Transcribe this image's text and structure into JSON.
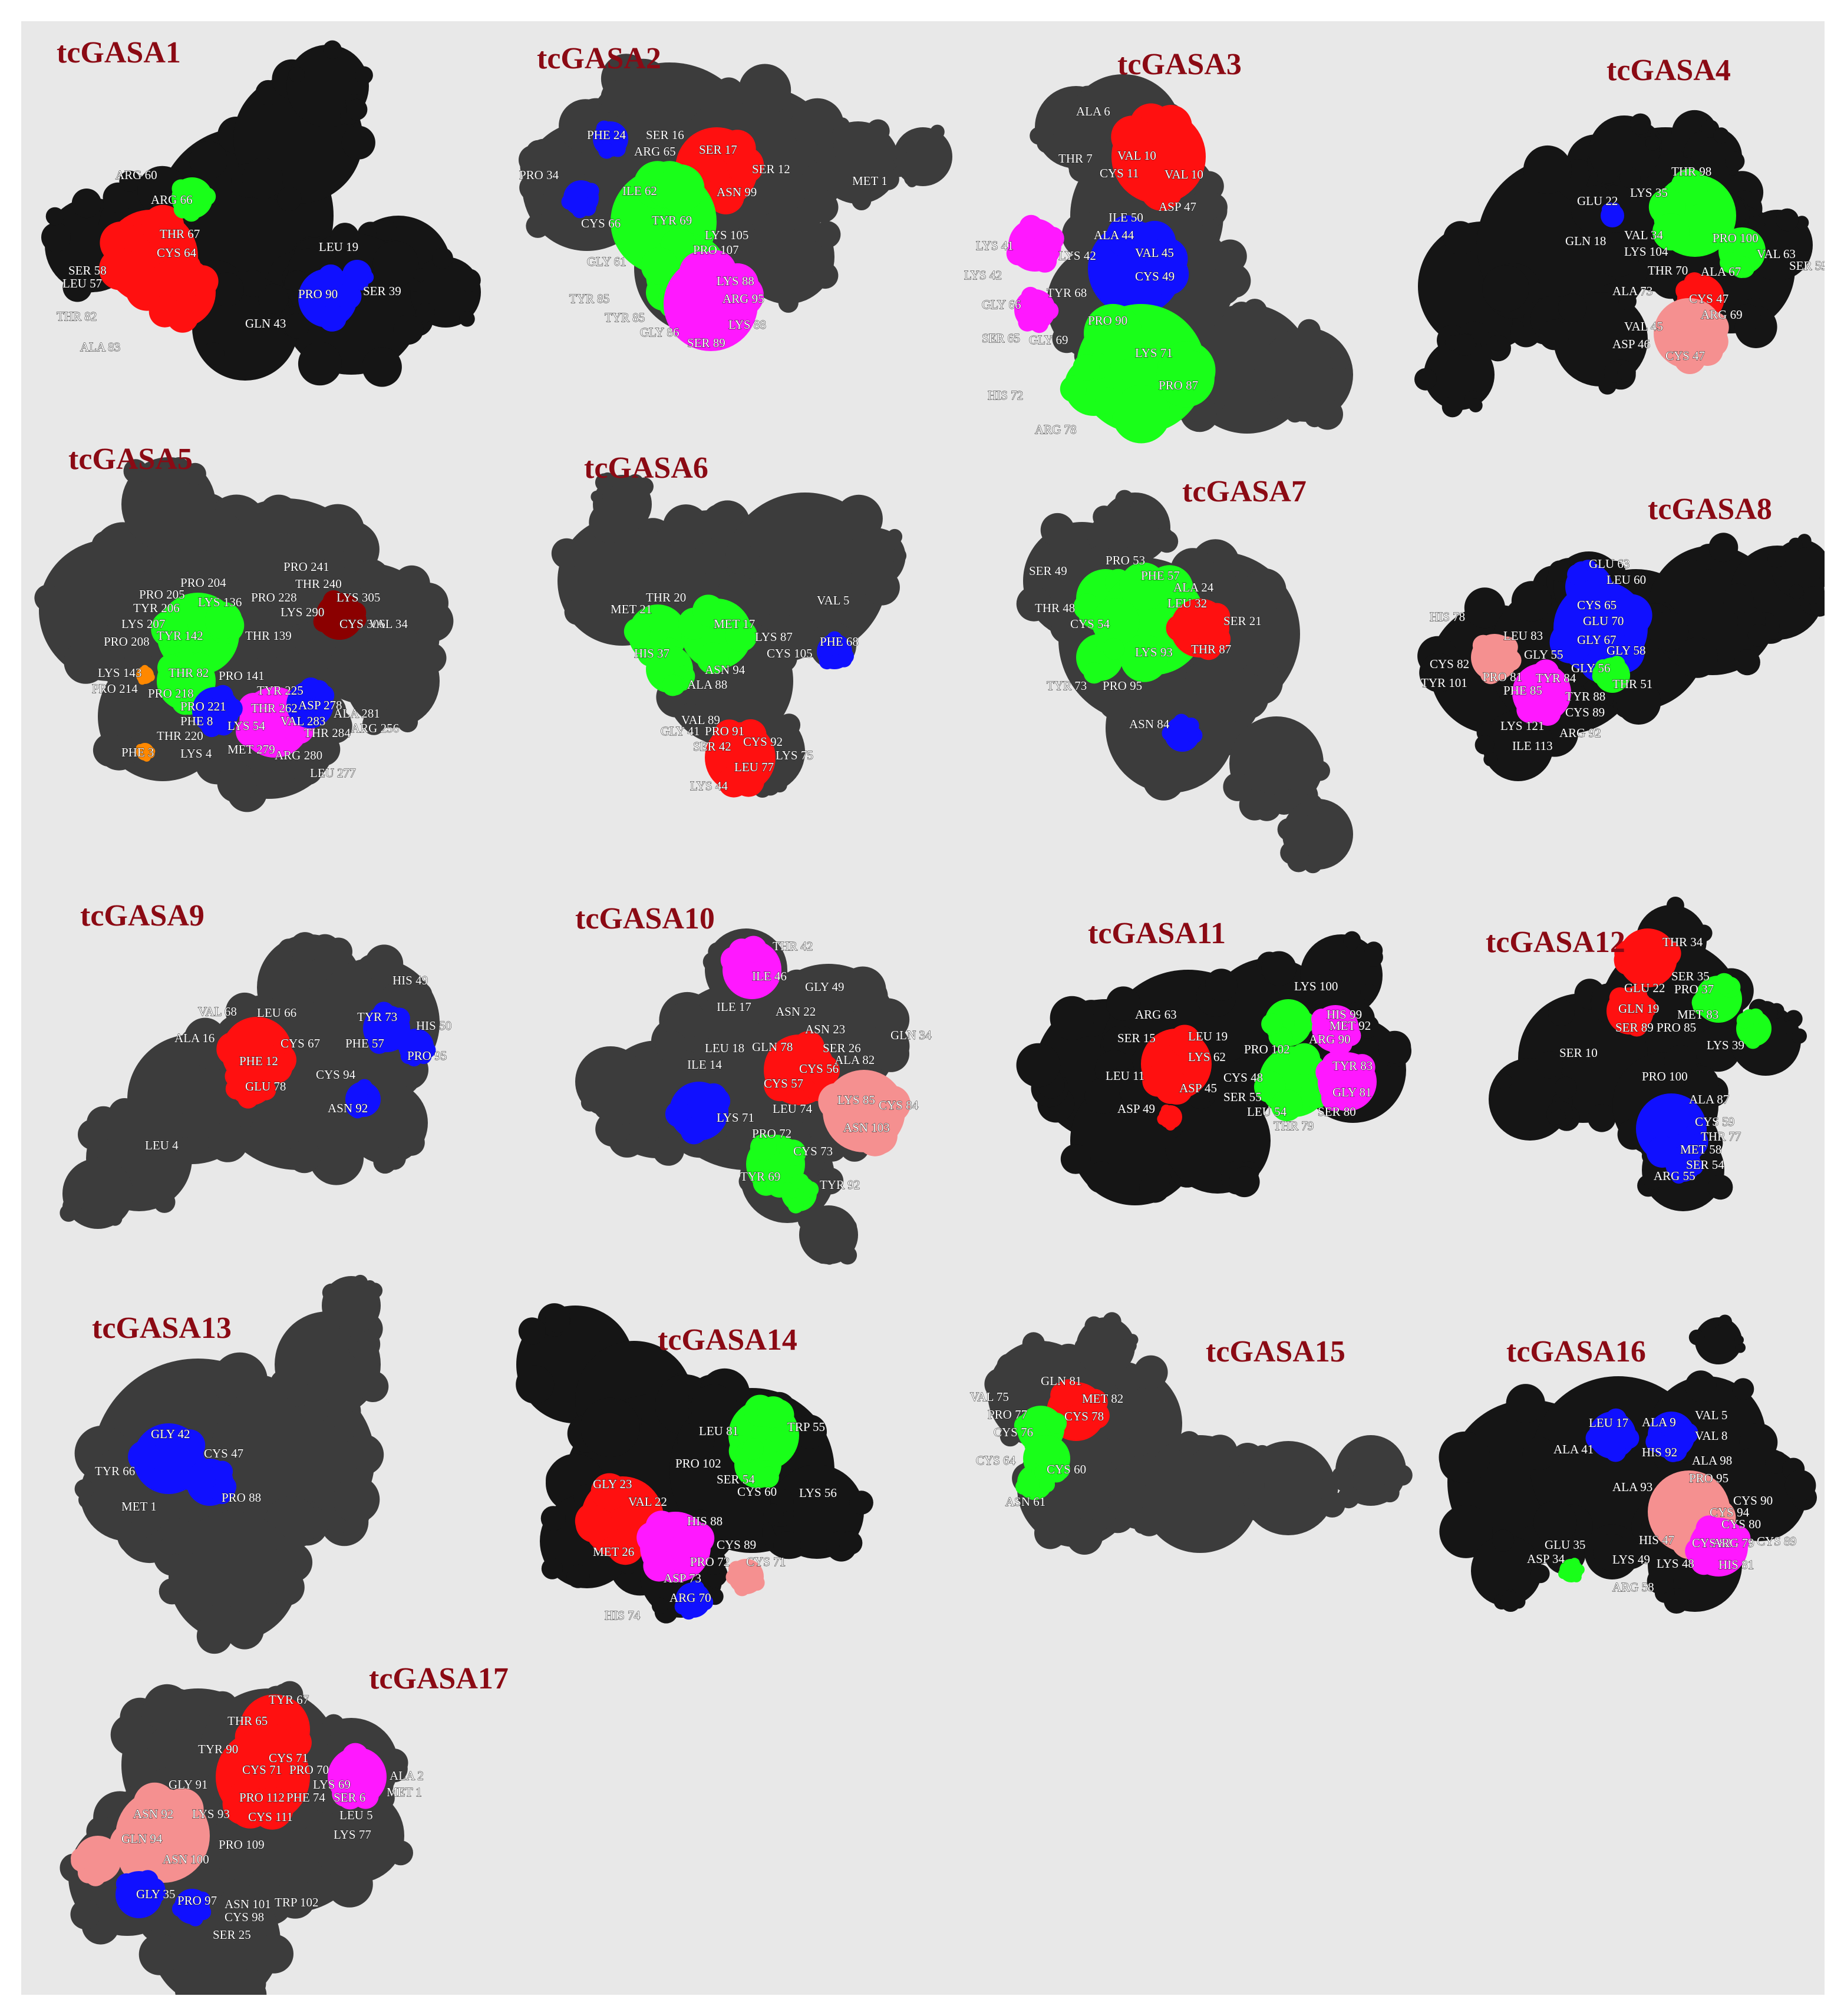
{
  "colors": {
    "background": "#e8e8e8",
    "title": "#8b0a14",
    "surface_black": "#151515",
    "surface_grey": "#3c3c3c",
    "red": "#ff1010",
    "green": "#19ff19",
    "blue": "#1010ff",
    "magenta": "#ff18ff",
    "salmon": "#f59090",
    "darkred": "#8b0000",
    "orange": "#ff8800",
    "label": "#ffffff"
  },
  "panels": [
    {
      "title": "tcGASA1",
      "base": "black",
      "labels": [
        "ARG 60",
        "ARG 66",
        "THR 67",
        "CYS 64",
        "SER 58",
        "LEU 57",
        "THR 82",
        "ALA 83",
        "LEU 19",
        "PRO 90",
        "SER 39",
        "GLN 43"
      ]
    },
    {
      "title": "tcGASA2",
      "base": "grey",
      "labels": [
        "PHE 24",
        "SER 16",
        "ARG 65",
        "SER 17",
        "SER 12",
        "PRO 34",
        "ILE 62",
        "ASN 99",
        "MET 1",
        "CYS 66",
        "TYR 69",
        "LYS 105",
        "PRO 107",
        "GLY 61",
        "LYS 88",
        "ARG 95",
        "TYR 85",
        "TYR 85",
        "LYS 88",
        "GLY 86",
        "SER 89"
      ]
    },
    {
      "title": "tcGASA3",
      "base": "grey",
      "labels": [
        "ALA 6",
        "THR 7",
        "VAL 10",
        "CYS 11",
        "VAL 10",
        "ASP 47",
        "ILE 50",
        "LYS 41",
        "ALA 44",
        "LYS 42",
        "VAL 45",
        "LYS 42",
        "TYR 68",
        "CYS 49",
        "GLY 66",
        "PRO 90",
        "SER 65",
        "GLY 69",
        "LYS 71",
        "PRO 87",
        "HIS 72",
        "ARG 78"
      ]
    },
    {
      "title": "tcGASA4",
      "base": "black",
      "labels": [
        "LYS 35",
        "THR 98",
        "GLU 22",
        "VAL 34",
        "GLN 18",
        "LYS 104",
        "PRO 100",
        "VAL 63",
        "THR 70",
        "ALA 67",
        "SER 59",
        "ALA 73",
        "CYS 47",
        "ARG 69",
        "VAL 45",
        "ASP 46",
        "CYS 47"
      ]
    },
    {
      "title": "tcGASA5",
      "base": "grey",
      "labels": [
        "PRO 241",
        "PRO 204",
        "THR 240",
        "PRO 205",
        "PRO 228",
        "LYS 305",
        "TYR 206",
        "LYS 136",
        "LYS 290",
        "LYS 207",
        "CYS 306",
        "VAL 34",
        "TYR 142",
        "THR 139",
        "PRO 208",
        "THR 82",
        "LYS 143",
        "PRO 141",
        "PRO 214",
        "TYR 225",
        "PRO 218",
        "PRO 221",
        "THR 262",
        "ASP 278",
        "PHE 8",
        "VAL 283",
        "ALA 281",
        "LYS 54",
        "THR 284",
        "ARG 256",
        "THR 220",
        "MET 279",
        "PHE 3",
        "LYS 4",
        "ARG 280",
        "LEU 277"
      ]
    },
    {
      "title": "tcGASA6",
      "base": "grey",
      "labels": [
        "THR 20",
        "MET 21",
        "MET 17",
        "VAL 5",
        "LYS 87",
        "HIS 37",
        "CYS 105",
        "PHE 68",
        "ASN 94",
        "ALA 88",
        "VAL 89",
        "GLY 41",
        "PRO 91",
        "CYS 92",
        "SER 42",
        "LYS 75",
        "LEU 77",
        "LYS 44"
      ]
    },
    {
      "title": "tcGASA7",
      "base": "grey",
      "labels": [
        "PRO 53",
        "SER 49",
        "PHE 57",
        "ALA 24",
        "LEU 32",
        "THR 48",
        "SER 21",
        "CYS 54",
        "THR 87",
        "LYS 93",
        "TYR 73",
        "PRO 95",
        "ASN 84"
      ]
    },
    {
      "title": "tcGASA8",
      "base": "black",
      "labels": [
        "GLU 63",
        "LEU 60",
        "CYS 65",
        "HIS 78",
        "GLU 70",
        "LEU 83",
        "GLY 67",
        "GLY 55",
        "GLY 58",
        "CYS 82",
        "GLY 56",
        "TYR 101",
        "PRO 81",
        "TYR 84",
        "THR 51",
        "PHE 85",
        "TYR 88",
        "CYS 89",
        "LYS 121",
        "ARG 92",
        "ILE 113"
      ]
    },
    {
      "title": "tcGASA9",
      "base": "grey",
      "labels": [
        "HIS 49",
        "VAL 68",
        "LEU 66",
        "TYR 73",
        "HIS 50",
        "ALA 16",
        "CYS 67",
        "PHE 57",
        "PHE 12",
        "PRO 95",
        "CYS 94",
        "GLU 78",
        "ASN 92",
        "LEU 4"
      ]
    },
    {
      "title": "tcGASA10",
      "base": "grey",
      "labels": [
        "THR 42",
        "ILE 46",
        "GLY 49",
        "ILE 17",
        "ASN 22",
        "ASN 23",
        "GLN 34",
        "LEU 18",
        "GLN 78",
        "SER 26",
        "ILE 14",
        "ALA 82",
        "CYS 56",
        "CYS 57",
        "LYS 85",
        "CYS 84",
        "LEU 74",
        "LYS 71",
        "ASN 103",
        "PRO 72",
        "CYS 73",
        "TYR 69",
        "TYR 92"
      ]
    },
    {
      "title": "tcGASA11",
      "base": "black",
      "labels": [
        "LYS 100",
        "HIS 99",
        "ARG 63",
        "MET 92",
        "LEU 19",
        "SER 15",
        "PRO 102",
        "ARG 90",
        "LYS 62",
        "TYR 83",
        "LEU 11",
        "CYS 48",
        "ASP 45",
        "GLY 81",
        "SER 55",
        "ASP 49",
        "LEU 54",
        "SER 80",
        "THR 79"
      ]
    },
    {
      "title": "tcGASA12",
      "base": "black",
      "labels": [
        "THR 34",
        "SER 35",
        "GLU 22",
        "PRO 37",
        "GLN 19",
        "MET 83",
        "SER 89",
        "PRO 85",
        "LYS 39",
        "SER 10",
        "PRO 100",
        "ALA 87",
        "CYS 59",
        "THR 77",
        "MET 58",
        "SER 54",
        "ARG 55"
      ]
    },
    {
      "title": "tcGASA13",
      "base": "grey",
      "labels": [
        "GLY 42",
        "CYS 47",
        "TYR 66",
        "PRO 88",
        "MET 1"
      ]
    },
    {
      "title": "tcGASA14",
      "base": "black",
      "labels": [
        "LEU 81",
        "TRP 55",
        "PRO 102",
        "SER 54",
        "GLY 23",
        "CYS 60",
        "LYS 56",
        "VAL 22",
        "HIS 88",
        "MET 26",
        "CYS 89",
        "PRO 72",
        "CYS 71",
        "ASP 73",
        "ARG 70",
        "HIS 74"
      ]
    },
    {
      "title": "tcGASA15",
      "base": "grey",
      "labels": [
        "GLN 81",
        "VAL 75",
        "MET 82",
        "PRO 77",
        "CYS 78",
        "CYS 76",
        "CYS 64",
        "CYS 60",
        "ASN 61"
      ]
    },
    {
      "title": "tcGASA16",
      "base": "black",
      "labels": [
        "LEU 17",
        "ALA 9",
        "VAL 5",
        "VAL 8",
        "ALA 41",
        "HIS 92",
        "ALA 98",
        "PRO 95",
        "ALA 93",
        "CYS 90",
        "CYS 94",
        "HIS 47",
        "CYS 80",
        "CYS 82",
        "ARG 79",
        "CYS 89",
        "GLU 35",
        "ASP 34",
        "LYS 49",
        "LYS 48",
        "HIS 81",
        "ARG 58"
      ]
    },
    {
      "title": "tcGASA17",
      "base": "grey",
      "labels": [
        "TYR 67",
        "THR 65",
        "TYR 90",
        "CYS 71",
        "CYS 71",
        "PRO 70",
        "GLY 91",
        "LYS 69",
        "ALA 2",
        "PRO 112",
        "PHE 74",
        "SER 6",
        "MET 1",
        "ASN 92",
        "LYS 93",
        "CYS 111",
        "LEU 5",
        "LYS 77",
        "GLN 94",
        "PRO 109",
        "ASN 100",
        "GLY 35",
        "PRO 97",
        "ASN 101",
        "TRP 102",
        "CYS 98",
        "SER 25"
      ]
    }
  ]
}
